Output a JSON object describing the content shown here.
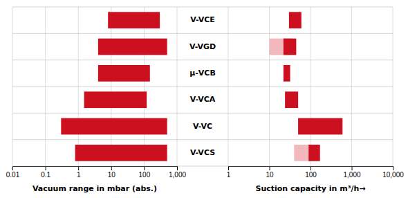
{
  "chart_data": [
    {
      "type": "bar",
      "orientation": "horizontal",
      "log": "x",
      "xlabel": "Vacuum range in mbar (abs.)",
      "categories": [
        "V-VCE",
        "V-VGD",
        "μ-VCB",
        "V-VCA",
        "V-VC",
        "V-VCS"
      ],
      "values": [
        [
          8,
          300
        ],
        [
          4,
          500
        ],
        [
          4,
          150
        ],
        [
          1.5,
          120
        ],
        [
          0.3,
          500
        ],
        [
          0.8,
          500
        ]
      ],
      "color": "#CC1020",
      "xlim": [
        0.01,
        1000
      ],
      "xticks": [
        0.01,
        0.1,
        1,
        10,
        100,
        {
          "value": 1000,
          "label": "1,000"
        }
      ],
      "grid": true
    },
    {
      "type": "bar",
      "orientation": "horizontal",
      "log": "x",
      "xlabel": "Suction capacity in m³/h→",
      "categories": [
        "V-VCE",
        "V-VGD",
        "μ-VCB",
        "V-VCA",
        "V-VC",
        "V-VCS"
      ],
      "series": [
        {
          "color": "#F2B8BC",
          "values": [
            null,
            [
              10,
              35
            ],
            null,
            null,
            null,
            [
              40,
              130
            ]
          ]
        },
        {
          "color": "#CC1020",
          "values": [
            [
              30,
              60
            ],
            [
              22,
              45
            ],
            [
              22,
              32
            ],
            [
              24,
              50
            ],
            [
              50,
              600
            ],
            [
              90,
              170
            ]
          ]
        }
      ],
      "xlim": [
        1,
        10000
      ],
      "xticks": [
        1,
        10,
        100,
        {
          "value": 1000,
          "label": "1,000"
        },
        {
          "value": 10000,
          "label": "10,000"
        }
      ],
      "grid": true
    }
  ]
}
